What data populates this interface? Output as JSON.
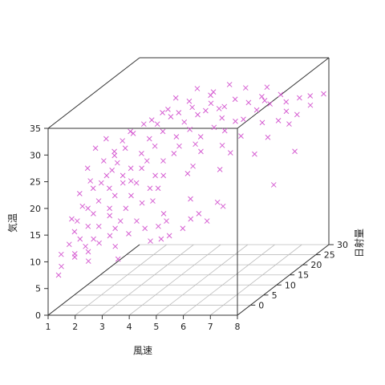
{
  "chart_data": {
    "type": "scatter",
    "xlabel": "風速",
    "ylabel": "日射量",
    "zlabel": "気温",
    "xlim": [
      1,
      8
    ],
    "ylim": [
      -5,
      30
    ],
    "zlim": [
      0,
      35
    ],
    "x_ticks": [
      1,
      2,
      3,
      4,
      5,
      6,
      7,
      8
    ],
    "y_ticks": [
      0,
      5,
      10,
      15,
      20,
      25,
      30
    ],
    "z_ticks": [
      0,
      5,
      10,
      15,
      20,
      25,
      30,
      35
    ],
    "grid": true,
    "marker": "x",
    "color": "#d65fd2",
    "points": [
      [
        1.0,
        0,
        9.5
      ],
      [
        1.2,
        1,
        11
      ],
      [
        1.0,
        -1,
        6
      ],
      [
        1.3,
        2,
        13
      ],
      [
        1.5,
        0,
        9
      ],
      [
        1.1,
        3,
        15
      ],
      [
        1.4,
        4,
        17
      ],
      [
        1.6,
        1,
        12
      ],
      [
        1.8,
        2,
        14
      ],
      [
        1.2,
        5,
        19
      ],
      [
        1.5,
        6,
        21
      ],
      [
        1.3,
        7,
        23
      ],
      [
        1.7,
        5,
        20
      ],
      [
        1.9,
        3,
        16
      ],
      [
        2.0,
        0,
        10
      ],
      [
        2.1,
        1,
        12
      ],
      [
        2.2,
        2,
        14
      ],
      [
        2.0,
        4,
        18
      ],
      [
        2.3,
        5,
        20
      ],
      [
        2.1,
        6,
        22
      ],
      [
        2.4,
        7,
        24
      ],
      [
        2.2,
        8,
        25
      ],
      [
        2.5,
        3,
        17
      ],
      [
        2.6,
        4,
        19
      ],
      [
        2.7,
        6,
        22
      ],
      [
        2.8,
        5,
        21
      ],
      [
        2.9,
        7,
        23
      ],
      [
        2.5,
        9,
        26
      ],
      [
        2.3,
        10,
        27
      ],
      [
        2.6,
        11,
        28
      ],
      [
        3.0,
        2,
        15
      ],
      [
        3.1,
        3,
        17
      ],
      [
        3.2,
        4,
        19
      ],
      [
        3.0,
        6,
        21
      ],
      [
        3.3,
        7,
        23
      ],
      [
        3.4,
        8,
        24
      ],
      [
        3.1,
        9,
        25
      ],
      [
        3.5,
        10,
        26
      ],
      [
        3.2,
        11,
        27
      ],
      [
        3.6,
        12,
        28
      ],
      [
        3.3,
        13,
        29
      ],
      [
        3.7,
        14,
        30
      ],
      [
        3.8,
        5,
        20
      ],
      [
        3.9,
        6,
        22
      ],
      [
        3.4,
        1,
        13
      ],
      [
        3.6,
        2,
        15
      ],
      [
        3.0,
        0,
        11
      ],
      [
        3.2,
        -1,
        9
      ],
      [
        3.5,
        15,
        31
      ],
      [
        3.8,
        16,
        30
      ],
      [
        4.0,
        4,
        18
      ],
      [
        4.1,
        5,
        20
      ],
      [
        4.2,
        6,
        22
      ],
      [
        4.0,
        8,
        24
      ],
      [
        4.3,
        9,
        25
      ],
      [
        4.4,
        10,
        26
      ],
      [
        4.1,
        12,
        27
      ],
      [
        4.5,
        13,
        28
      ],
      [
        4.2,
        14,
        29
      ],
      [
        4.6,
        15,
        30
      ],
      [
        4.3,
        16,
        31
      ],
      [
        4.7,
        17,
        30
      ],
      [
        4.8,
        18,
        31
      ],
      [
        4.4,
        2,
        14
      ],
      [
        4.6,
        1,
        12
      ],
      [
        4.5,
        3,
        16
      ],
      [
        4.9,
        11,
        26
      ],
      [
        5.0,
        7,
        22
      ],
      [
        5.1,
        8,
        23
      ],
      [
        5.2,
        10,
        25
      ],
      [
        5.0,
        12,
        27
      ],
      [
        5.3,
        14,
        28
      ],
      [
        5.4,
        16,
        29
      ],
      [
        5.1,
        18,
        30
      ],
      [
        5.5,
        20,
        31
      ],
      [
        5.2,
        19,
        30
      ],
      [
        5.6,
        15,
        27
      ],
      [
        5.7,
        13,
        25
      ],
      [
        5.3,
        5,
        18
      ],
      [
        5.5,
        3,
        15
      ],
      [
        5.8,
        17,
        28
      ],
      [
        5.9,
        21,
        30
      ],
      [
        6.0,
        9,
        22
      ],
      [
        6.1,
        12,
        24
      ],
      [
        6.2,
        15,
        26
      ],
      [
        6.0,
        18,
        28
      ],
      [
        6.3,
        20,
        29
      ],
      [
        6.4,
        22,
        30
      ],
      [
        6.1,
        24,
        30
      ],
      [
        6.5,
        23,
        29
      ],
      [
        6.2,
        6,
        17
      ],
      [
        6.6,
        19,
        27
      ],
      [
        6.7,
        25,
        30
      ],
      [
        6.8,
        14,
        23
      ],
      [
        7.0,
        17,
        25
      ],
      [
        7.1,
        20,
        27
      ],
      [
        7.2,
        22,
        28
      ],
      [
        7.0,
        24,
        29
      ],
      [
        7.3,
        26,
        29
      ],
      [
        7.4,
        21,
        26
      ],
      [
        7.5,
        23,
        27
      ],
      [
        7.6,
        27,
        29
      ],
      [
        7.8,
        25,
        28
      ],
      [
        8.0,
        28,
        29
      ],
      [
        7.9,
        18,
        22
      ],
      [
        7.7,
        12,
        18
      ],
      [
        1.4,
        9,
        26
      ],
      [
        1.8,
        8,
        24
      ],
      [
        2.0,
        10,
        25
      ],
      [
        1.6,
        11,
        27
      ],
      [
        2.4,
        12,
        28
      ],
      [
        2.8,
        13,
        29
      ],
      [
        1.2,
        -2,
        8
      ],
      [
        1.6,
        -1,
        10
      ],
      [
        1.9,
        0,
        11
      ],
      [
        2.2,
        -2,
        9
      ],
      [
        2.5,
        -1,
        12
      ],
      [
        2.8,
        0,
        13
      ],
      [
        1.4,
        2,
        15
      ],
      [
        1.7,
        3,
        17
      ],
      [
        2.0,
        5,
        21
      ],
      [
        2.3,
        6,
        23
      ],
      [
        2.6,
        2,
        16
      ],
      [
        2.9,
        1,
        14
      ],
      [
        3.3,
        5,
        21
      ],
      [
        3.7,
        3,
        18
      ],
      [
        4.0,
        1,
        14
      ],
      [
        4.3,
        0,
        12
      ],
      [
        4.7,
        2,
        15
      ],
      [
        5.0,
        0,
        13
      ],
      [
        5.4,
        1,
        14
      ],
      [
        5.8,
        3,
        16
      ],
      [
        6.2,
        2,
        15
      ],
      [
        6.6,
        4,
        17
      ],
      [
        3.5,
        18,
        32
      ],
      [
        4.1,
        20,
        33
      ],
      [
        4.6,
        21,
        32
      ],
      [
        5.1,
        22,
        33
      ],
      [
        5.6,
        23,
        32
      ],
      [
        6.1,
        26,
        31
      ],
      [
        3.9,
        19,
        31
      ],
      [
        4.4,
        22,
        31
      ],
      [
        3.2,
        16,
        30
      ],
      [
        2.9,
        15,
        29
      ]
    ]
  }
}
